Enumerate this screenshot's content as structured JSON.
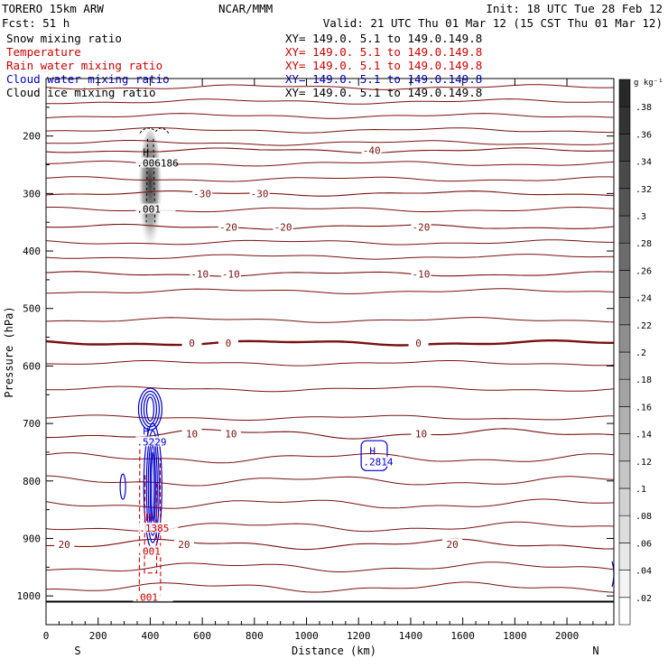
{
  "header": {
    "model": "TORERO  15km ARW",
    "org": "NCAR/MMM",
    "init": "Init: 18 UTC Tue 28 Feb 12",
    "fcst": "Fcst:    51 h",
    "valid": "Valid: 21 UTC Thu 01 Mar 12 (15 CST Thu 01 Mar 12)"
  },
  "legend": [
    {
      "label": "Snow mixing ratio",
      "xy": "XY= 149.0.  5.1 to 149.0.149.8",
      "color": "#000000"
    },
    {
      "label": "Temperature",
      "xy": "XY= 149.0.  5.1 to 149.0.149.8",
      "color": "#cc0000"
    },
    {
      "label": "Rain water mixing ratio",
      "xy": "XY= 149.0.  5.1 to 149.0.149.8",
      "color": "#cc0000"
    },
    {
      "label": "Cloud water mixing ratio",
      "xy": "XY= 149.0.  5.1 to 149.0.149.8",
      "color": "#0000cc"
    },
    {
      "label": "Cloud ice mixing ratio",
      "xy": "XY= 149.0.  5.1 to 149.0.149.8",
      "color": "#000000"
    }
  ],
  "chart_data": {
    "type": "cross-section contour",
    "xlabel": "Distance (km)",
    "ylabel": "Pressure (hPa)",
    "xlim": [
      0,
      2180
    ],
    "ylim": [
      1050,
      100
    ],
    "x_ticks": [
      0,
      200,
      400,
      600,
      800,
      1000,
      1200,
      1400,
      1600,
      1800,
      2000
    ],
    "y_ticks": [
      200,
      300,
      400,
      500,
      600,
      700,
      800,
      900,
      1000
    ],
    "direction_left": "S",
    "direction_right": "N",
    "colorbar": {
      "unit": "g kg⁻¹",
      "ticks": [
        ".02",
        ".04",
        ".06",
        ".08",
        ".1",
        ".12",
        ".14",
        ".16",
        ".18",
        ".2",
        ".22",
        ".24",
        ".26",
        ".28",
        ".3",
        ".32",
        ".34",
        ".36",
        ".38"
      ],
      "min": 0,
      "max": 0.4
    },
    "surface_pressure": 1010,
    "isotherms": [
      {
        "level": -40,
        "p": 225,
        "labels": [
          {
            "x": 1250,
            "text": "-40"
          }
        ]
      },
      {
        "level": -30,
        "p": 300,
        "labels": [
          {
            "x": 600,
            "text": "-30"
          },
          {
            "x": 820,
            "text": "-30"
          }
        ]
      },
      {
        "level": -20,
        "p": 358,
        "labels": [
          {
            "x": 700,
            "text": "-20"
          },
          {
            "x": 910,
            "text": "-20"
          },
          {
            "x": 1440,
            "text": "-20"
          }
        ]
      },
      {
        "level": -10,
        "p": 440,
        "labels": [
          {
            "x": 590,
            "text": "-10"
          },
          {
            "x": 710,
            "text": "-10"
          },
          {
            "x": 1440,
            "text": "-10"
          }
        ]
      },
      {
        "level": 0,
        "p": 560,
        "labels": [
          {
            "x": 560,
            "text": "0"
          },
          {
            "x": 700,
            "text": "0"
          },
          {
            "x": 1430,
            "text": "0"
          }
        ]
      },
      {
        "level": 10,
        "p": 718,
        "labels": [
          {
            "x": 560,
            "text": "10"
          },
          {
            "x": 710,
            "text": "10"
          },
          {
            "x": 1440,
            "text": "10"
          }
        ]
      },
      {
        "level": 20,
        "p": 910,
        "labels": [
          {
            "x": 70,
            "text": "20"
          },
          {
            "x": 530,
            "text": "20"
          },
          {
            "x": 1560,
            "text": "20"
          }
        ]
      }
    ],
    "snow_max": {
      "label": "H",
      "value": ".006186",
      "x": 400,
      "p": 250
    },
    "cloud_ice": {
      "value": ".001",
      "x": 400,
      "p": 330
    },
    "cloud_water_max": [
      {
        "label": "H",
        "value": ".5229",
        "x": 400,
        "p": 735
      },
      {
        "label": "H",
        "value": ".2814",
        "x": 1270,
        "p": 770
      }
    ],
    "rain_max": {
      "label": "H",
      "value": ".1385",
      "x": 410,
      "p": 885
    },
    "rain_min_labels": [
      {
        "value": ".001",
        "x": 400,
        "p": 925
      },
      {
        "value": ".001",
        "x": 390,
        "p": 1005
      }
    ],
    "grid": false
  }
}
